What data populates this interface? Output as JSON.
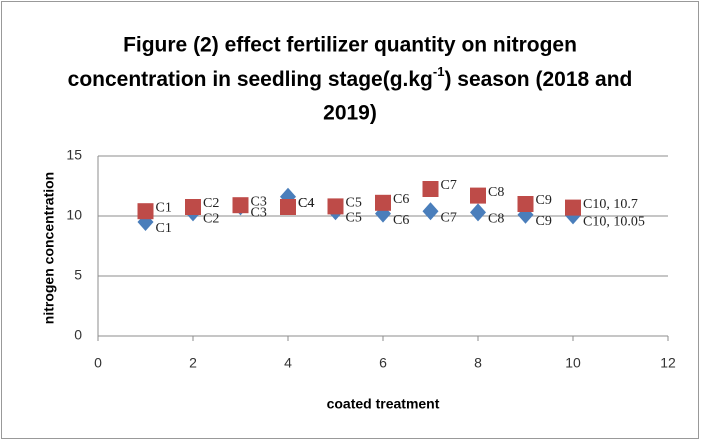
{
  "chart_data": {
    "type": "line",
    "title_lines": [
      "Figure (2) effect  fertilizer quantity on nitrogen",
      [
        "concentration in seedling stage(g.kg",
        "-1",
        ") season (2018 and"
      ],
      "2019)"
    ],
    "x_label": "coated treatment",
    "y_label": "nitrogen concentration",
    "x": [
      1,
      2,
      3,
      4,
      5,
      6,
      7,
      8,
      9,
      10
    ],
    "series": [
      {
        "color": "#4a7ebb",
        "marker": "diamond",
        "values": [
          9.5,
          10.3,
          10.8,
          11.6,
          10.4,
          10.2,
          10.4,
          10.3,
          10.1,
          10.05
        ],
        "point_labels": [
          "C1",
          "C2",
          "C3",
          "C4",
          "C5",
          "C6",
          "C7",
          "C8",
          "C9",
          "C10, 10.05"
        ]
      },
      {
        "color": "#be4b48",
        "marker": "square",
        "values": [
          10.4,
          10.75,
          10.9,
          10.75,
          10.8,
          11.1,
          12.25,
          11.7,
          11,
          10.7
        ],
        "point_labels": [
          "C1",
          "C2",
          "C3",
          "C4",
          "C5",
          "C6",
          "C7",
          "C8",
          "C9",
          "C10, 10.7"
        ]
      }
    ],
    "xlim": [
      0,
      12
    ],
    "xticks": [
      0,
      2,
      4,
      6,
      8,
      10,
      12
    ],
    "ylim": [
      0,
      15
    ],
    "yticks": [
      0,
      5,
      10,
      15
    ],
    "grid": true
  }
}
